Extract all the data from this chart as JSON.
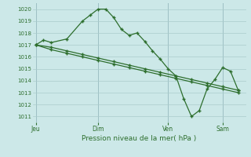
{
  "background_color": "#cce8e8",
  "grid_color": "#aacccc",
  "line_color": "#2d6e2d",
  "xlabel": "Pression niveau de la mer( hPa )",
  "ylim": [
    1010.5,
    1020.5
  ],
  "yticks": [
    1011,
    1012,
    1013,
    1014,
    1015,
    1016,
    1017,
    1018,
    1019,
    1020
  ],
  "xtick_labels": [
    "Jeu",
    "Dim",
    "Ven",
    "Sam"
  ],
  "series1_x": [
    0,
    0.5,
    1.0,
    2.0,
    3.0,
    3.5,
    4.0,
    4.5,
    5.0,
    5.5,
    6.0,
    6.5,
    7.0,
    7.5,
    8.0,
    8.5,
    9.0,
    9.5,
    10.0,
    10.5,
    11.0,
    11.5,
    12.0,
    12.5,
    13.0
  ],
  "series1_y": [
    1017.0,
    1017.4,
    1017.2,
    1017.5,
    1019.0,
    1019.5,
    1020.0,
    1020.0,
    1019.3,
    1018.3,
    1017.8,
    1018.0,
    1017.3,
    1016.5,
    1015.8,
    1015.0,
    1014.4,
    1012.5,
    1011.0,
    1011.5,
    1013.3,
    1014.1,
    1015.1,
    1014.8,
    1013.2
  ],
  "series2_x": [
    0,
    1.0,
    2.0,
    3.0,
    4.0,
    5.0,
    6.0,
    7.0,
    8.0,
    9.0,
    10.0,
    11.0,
    12.0,
    13.0
  ],
  "series2_y": [
    1017.0,
    1016.8,
    1016.5,
    1016.2,
    1015.9,
    1015.6,
    1015.3,
    1015.0,
    1014.7,
    1014.4,
    1014.1,
    1013.8,
    1013.5,
    1013.2
  ],
  "series3_x": [
    0,
    1.0,
    2.0,
    3.0,
    4.0,
    5.0,
    6.0,
    7.0,
    8.0,
    9.0,
    10.0,
    11.0,
    12.0,
    13.0
  ],
  "series3_y": [
    1017.0,
    1016.6,
    1016.3,
    1016.0,
    1015.7,
    1015.4,
    1015.1,
    1014.8,
    1014.5,
    1014.2,
    1013.9,
    1013.6,
    1013.3,
    1013.0
  ],
  "xtick_positions": [
    0,
    4.0,
    8.5,
    12.0
  ],
  "vline_positions": [
    0,
    4.0,
    8.5,
    12.0
  ],
  "xlim": [
    -0.2,
    13.5
  ]
}
